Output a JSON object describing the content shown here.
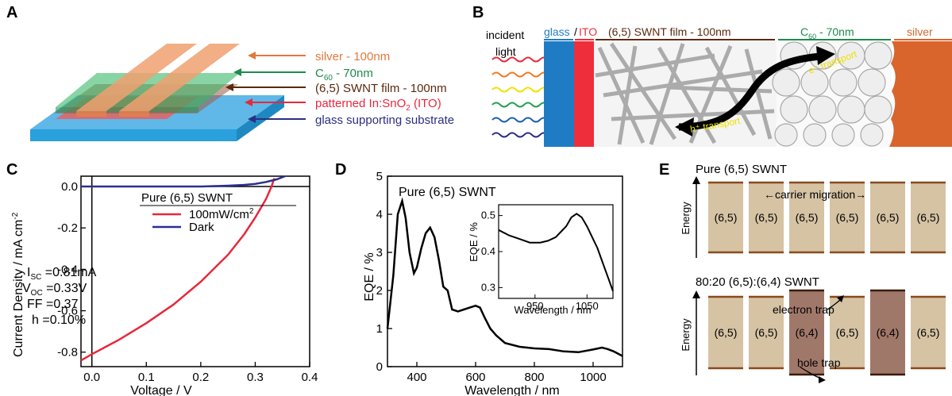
{
  "panels": {
    "a": "A",
    "b": "B",
    "c": "C",
    "d": "D",
    "e": "E"
  },
  "panel_a": {
    "labels": {
      "silver": "silver - 100nm",
      "c60_main": "C",
      "c60_sub": "60",
      "c60_tail": " - 70nm",
      "swnt": "(6,5) SWNT film - 100nm",
      "ito_main": "patterned In:SnO",
      "ito_sub": "2",
      "ito_tail": " (ITO)",
      "glass": "glass supporting substrate"
    },
    "colors": {
      "silver": "#e07a3c",
      "c60": "#1f8a4c",
      "swnt": "#5a2a10",
      "ito": "#e8283c",
      "glass": "#2b2f80"
    }
  },
  "panel_b": {
    "incident": "incident",
    "light": "light",
    "glass": "glass",
    "slash": "/",
    "ito": "ITO",
    "swnt_film": "(6,5) SWNT film - 100nm",
    "c60_main": "C",
    "c60_sub": "60",
    "c60_tail": " - 70nm",
    "silver": "silver",
    "e_transport": "e⁻ transport",
    "h_transport": "h⁺ transport",
    "ray_colors": [
      "#e8283c",
      "#f07a20",
      "#f2e000",
      "#1fa050",
      "#1a5fb0",
      "#2b2f80"
    ]
  },
  "panel_c": {
    "legend_title": "Pure (6,5) SWNT",
    "legend_light_main": "100mW/cm",
    "legend_light_sup": "2",
    "legend_dark": "Dark",
    "isc_main": "I",
    "isc_sub": "SC",
    "isc_val": " =0.81mA",
    "voc_main": "V",
    "voc_sub": "OC",
    "voc_val": " =0.33V",
    "ff": "FF =0.37",
    "eta": "h =0.10%",
    "ylabel_main": "Current Density / mA cm",
    "ylabel_sup": "-2",
    "xlabel": "Voltage / V",
    "xticks": [
      "0.0",
      "0.1",
      "0.2",
      "0.3",
      "0.4"
    ],
    "yticks": [
      "-0.8",
      "-0.6",
      "-0.4",
      "-0.2",
      "0.0"
    ]
  },
  "panel_d": {
    "title": "Pure (6,5) SWNT",
    "ylabel": "EQE / %",
    "xlabel": "Wavelength / nm",
    "xticks": [
      "400",
      "600",
      "800",
      "1000"
    ],
    "yticks": [
      "0",
      "1",
      "2",
      "3",
      "4",
      "5"
    ],
    "inset": {
      "ylabel": "EQE / %",
      "xlabel": "Wavelength / nm",
      "xticks": [
        "950",
        "1050"
      ],
      "yticks": [
        "0.3",
        "0.4",
        "0.5"
      ]
    }
  },
  "panel_e": {
    "top_title": "Pure (6,5) SWNT",
    "migration": "carrier migration",
    "bottom_title": "80:20 (6,5):(6,4) SWNT",
    "energy": "Energy",
    "electron_trap": "electron trap",
    "hole_trap": "hole trap",
    "top_blocks": [
      "(6,5)",
      "(6,5)",
      "(6,5)",
      "(6,5)",
      "(6,5)",
      "(6,5)"
    ],
    "bottom_blocks": [
      "(6,5)",
      "(6,5)",
      "(6,4)",
      "(6,5)",
      "(6,4)",
      "(6,5)"
    ]
  },
  "chart_data": [
    {
      "type": "line",
      "title": "Pure (6,5) SWNT",
      "xlabel": "Voltage / V",
      "ylabel": "Current Density / mA cm-2",
      "xlim": [
        -0.02,
        0.4
      ],
      "ylim": [
        0.05,
        -0.87
      ],
      "series": [
        {
          "name": "100mW/cm2",
          "x": [
            -0.02,
            0.0,
            0.05,
            0.1,
            0.15,
            0.2,
            0.25,
            0.28,
            0.3,
            0.32,
            0.33,
            0.335
          ],
          "y": [
            -0.84,
            -0.81,
            -0.74,
            -0.66,
            -0.57,
            -0.46,
            -0.33,
            -0.23,
            -0.15,
            -0.06,
            0.0,
            0.04
          ],
          "color": "#e8283c"
        },
        {
          "name": "Dark",
          "x": [
            -0.02,
            0.0,
            0.1,
            0.2,
            0.25,
            0.28,
            0.3,
            0.32,
            0.34,
            0.355
          ],
          "y": [
            0.0,
            0.0,
            0.0,
            0.0,
            0.004,
            0.008,
            0.013,
            0.022,
            0.035,
            0.05
          ],
          "color": "#2b2f90"
        }
      ]
    },
    {
      "type": "line",
      "title": "Pure (6,5) SWNT",
      "xlabel": "Wavelength / nm",
      "ylabel": "EQE / %",
      "xlim": [
        300,
        1100
      ],
      "ylim": [
        0,
        5
      ],
      "series": [
        {
          "x": [
            300,
            320,
            335,
            350,
            362,
            375,
            390,
            400,
            415,
            430,
            445,
            460,
            475,
            490,
            505,
            520,
            540,
            560,
            580,
            600,
            615,
            630,
            650,
            670,
            700,
            750,
            800,
            850,
            900,
            950,
            1000,
            1030,
            1050,
            1070,
            1100
          ],
          "y": [
            1.0,
            2.4,
            4.0,
            4.35,
            3.9,
            3.0,
            2.45,
            2.6,
            3.1,
            3.5,
            3.65,
            3.4,
            2.8,
            2.1,
            2.0,
            1.5,
            1.45,
            1.5,
            1.55,
            1.6,
            1.55,
            1.3,
            1.0,
            0.82,
            0.62,
            0.52,
            0.48,
            0.46,
            0.4,
            0.38,
            0.45,
            0.5,
            0.46,
            0.4,
            0.28
          ]
        }
      ]
    },
    {
      "type": "line",
      "title": "",
      "xlabel": "Wavelength / nm",
      "ylabel": "EQE / %",
      "xlim": [
        880,
        1100
      ],
      "ylim": [
        0.27,
        0.53
      ],
      "series": [
        {
          "x": [
            880,
            900,
            920,
            940,
            960,
            975,
            990,
            1000,
            1010,
            1020,
            1030,
            1040,
            1050,
            1060,
            1070,
            1080,
            1090,
            1100
          ],
          "y": [
            0.46,
            0.445,
            0.435,
            0.425,
            0.425,
            0.43,
            0.44,
            0.455,
            0.47,
            0.495,
            0.505,
            0.495,
            0.47,
            0.44,
            0.41,
            0.37,
            0.33,
            0.29
          ]
        }
      ]
    }
  ]
}
